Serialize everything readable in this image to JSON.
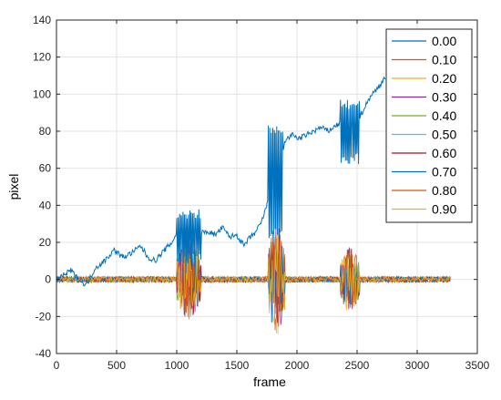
{
  "chart_data": {
    "type": "line",
    "xlabel": "frame",
    "ylabel": "pixel",
    "xlim": [
      0,
      3500
    ],
    "ylim": [
      -40,
      140
    ],
    "xticks": [
      0,
      500,
      1000,
      1500,
      2000,
      2500,
      3000,
      3500
    ],
    "yticks": [
      -40,
      -20,
      0,
      20,
      40,
      60,
      80,
      100,
      120,
      140
    ],
    "grid": true,
    "legend_position": "top-right",
    "colors": {
      "0.00": "#0072bd",
      "0.10": "#d95319",
      "0.20": "#edb120",
      "0.30": "#7e2f8e",
      "0.40": "#77ac30",
      "0.50": "#4dbeee",
      "0.60": "#a2142f",
      "0.70": "#0072bd",
      "0.80": "#d95319",
      "0.90": "#edb120"
    },
    "series": [
      {
        "name": "0.00",
        "x": [
          0,
          80,
          120,
          180,
          250,
          320,
          400,
          480,
          550,
          620,
          700,
          760,
          820,
          900,
          960,
          1000,
          1040,
          1080,
          1120,
          1160,
          1200,
          1260,
          1320,
          1380,
          1440,
          1500,
          1560,
          1600,
          1650,
          1700,
          1750,
          1780,
          1800,
          1820,
          1850,
          1880,
          1900,
          1960,
          2020,
          2080,
          2140,
          2200,
          2260,
          2300,
          2350,
          2380,
          2420,
          2460,
          2500,
          2540,
          2580,
          2620,
          2660,
          2700,
          2740
        ],
        "y": [
          0,
          3,
          5,
          0,
          -3,
          6,
          10,
          16,
          12,
          14,
          18,
          12,
          10,
          16,
          20,
          25,
          30,
          20,
          28,
          22,
          25,
          26,
          24,
          28,
          23,
          24,
          18,
          22,
          25,
          30,
          40,
          55,
          65,
          68,
          66,
          68,
          75,
          78,
          76,
          78,
          80,
          82,
          80,
          82,
          84,
          86,
          83,
          80,
          85,
          90,
          95,
          100,
          102,
          106,
          110
        ],
        "spikes": [
          {
            "x_start": 1000,
            "x_end": 1200,
            "low": 8,
            "high": 38
          },
          {
            "x_start": 1760,
            "x_end": 1880,
            "low": 22,
            "high": 85
          },
          {
            "x_start": 2360,
            "x_end": 2520,
            "low": 62,
            "high": 98
          }
        ]
      },
      {
        "name": "0.10",
        "values": "noise around 0; bursts at frames 1000–1200 (±25), 1760–1900 (±30), 2360–2520 (±20)"
      },
      {
        "name": "0.20"
      },
      {
        "name": "0.30"
      },
      {
        "name": "0.40"
      },
      {
        "name": "0.50"
      },
      {
        "name": "0.60"
      },
      {
        "name": "0.70"
      },
      {
        "name": "0.80"
      },
      {
        "name": "0.90"
      }
    ]
  }
}
